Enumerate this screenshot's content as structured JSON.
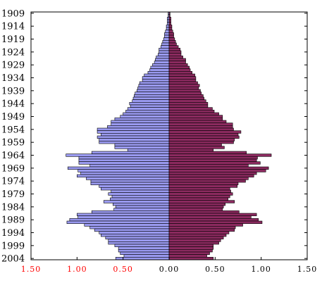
{
  "chart_data": {
    "type": "bar",
    "orientation": "horizontal-population-pyramid",
    "title": "",
    "xlabel": "",
    "ylabel": "",
    "xlim": [
      -1.5,
      1.5
    ],
    "ylim": [
      1909,
      2004
    ],
    "y_tick_labels": [
      "1909",
      "1914",
      "1919",
      "1924",
      "1929",
      "1934",
      "1939",
      "1944",
      "1949",
      "1954",
      "1959",
      "1964",
      "1969",
      "1974",
      "1979",
      "1984",
      "1989",
      "1994",
      "1999",
      "2004"
    ],
    "x_tick_labels": [
      "1.50",
      "1.00",
      "0.50",
      "0.00",
      "0.50",
      "1.00",
      "1.50"
    ],
    "x_tick_colors": [
      "#ff0000",
      "#ff0000",
      "#ff0000",
      "#000000",
      "#000000",
      "#000000",
      "#000000"
    ],
    "grid": false,
    "colors": {
      "left_fill": "#9a9af0",
      "right_fill": "#8b2a5f",
      "bar_stroke": "#000000"
    },
    "categories": [
      1909,
      1910,
      1911,
      1912,
      1913,
      1914,
      1915,
      1916,
      1917,
      1918,
      1919,
      1920,
      1921,
      1922,
      1923,
      1924,
      1925,
      1926,
      1927,
      1928,
      1929,
      1930,
      1931,
      1932,
      1933,
      1934,
      1935,
      1936,
      1937,
      1938,
      1939,
      1940,
      1941,
      1942,
      1943,
      1944,
      1945,
      1946,
      1947,
      1948,
      1949,
      1950,
      1951,
      1952,
      1953,
      1954,
      1955,
      1956,
      1957,
      1958,
      1959,
      1960,
      1961,
      1962,
      1963,
      1964,
      1965,
      1966,
      1967,
      1968,
      1969,
      1970,
      1971,
      1972,
      1973,
      1974,
      1975,
      1976,
      1977,
      1978,
      1979,
      1980,
      1981,
      1982,
      1983,
      1984,
      1985,
      1986,
      1987,
      1988,
      1989,
      1990,
      1991,
      1992,
      1993,
      1994,
      1995,
      1996,
      1997,
      1998,
      1999,
      2000,
      2001,
      2002,
      2003,
      2004
    ],
    "series": [
      {
        "side": "left",
        "values": [
          0.01,
          0.01,
          0.02,
          0.02,
          0.02,
          0.03,
          0.03,
          0.04,
          0.05,
          0.05,
          0.06,
          0.07,
          0.08,
          0.09,
          0.11,
          0.11,
          0.12,
          0.14,
          0.15,
          0.16,
          0.18,
          0.2,
          0.21,
          0.23,
          0.27,
          0.29,
          0.29,
          0.32,
          0.33,
          0.34,
          0.35,
          0.37,
          0.38,
          0.39,
          0.4,
          0.43,
          0.42,
          0.45,
          0.47,
          0.5,
          0.53,
          0.59,
          0.63,
          0.63,
          0.67,
          0.78,
          0.78,
          0.74,
          0.78,
          0.76,
          0.76,
          0.59,
          0.59,
          0.45,
          0.84,
          1.12,
          0.98,
          0.98,
          0.98,
          0.86,
          1.1,
          0.99,
          0.96,
          1.0,
          0.9,
          0.85,
          0.85,
          0.76,
          0.74,
          0.63,
          0.66,
          0.62,
          0.64,
          0.71,
          0.61,
          0.58,
          0.6,
          0.84,
          1.0,
          0.99,
          1.08,
          1.11,
          0.92,
          0.86,
          0.81,
          0.76,
          0.74,
          0.69,
          0.66,
          0.66,
          0.59,
          0.55,
          0.55,
          0.53,
          0.49,
          0.58
        ]
      },
      {
        "side": "right",
        "values": [
          0.01,
          0.01,
          0.02,
          0.02,
          0.02,
          0.03,
          0.03,
          0.04,
          0.05,
          0.05,
          0.06,
          0.07,
          0.08,
          0.1,
          0.12,
          0.13,
          0.13,
          0.15,
          0.18,
          0.18,
          0.2,
          0.22,
          0.23,
          0.25,
          0.28,
          0.29,
          0.29,
          0.31,
          0.33,
          0.32,
          0.34,
          0.35,
          0.37,
          0.38,
          0.4,
          0.42,
          0.42,
          0.47,
          0.49,
          0.54,
          0.58,
          0.58,
          0.62,
          0.69,
          0.69,
          0.7,
          0.78,
          0.75,
          0.76,
          0.71,
          0.7,
          0.57,
          0.6,
          0.48,
          0.84,
          1.11,
          0.96,
          0.95,
          0.99,
          0.86,
          1.08,
          1.05,
          0.95,
          0.92,
          0.86,
          0.83,
          0.75,
          0.74,
          0.66,
          0.67,
          0.69,
          0.66,
          0.64,
          0.71,
          0.61,
          0.59,
          0.58,
          0.76,
          0.95,
          0.89,
          0.97,
          1.01,
          0.8,
          0.72,
          0.71,
          0.65,
          0.62,
          0.59,
          0.56,
          0.54,
          0.48,
          0.48,
          0.47,
          0.44,
          0.41,
          0.48
        ]
      }
    ]
  }
}
